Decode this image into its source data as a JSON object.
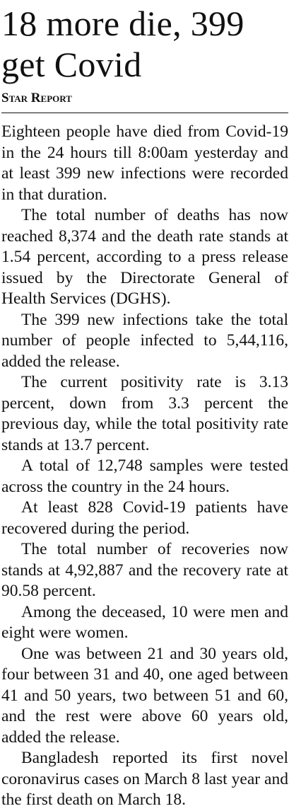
{
  "headline": "18 more die, 399 get Covid",
  "byline": "Star Report",
  "paragraphs": [
    "Eighteen people have died from Covid-19 in the 24 hours till 8:00am yesterday and at least 399 new infections were recorded in that duration.",
    "The total number of deaths has now reached 8,374 and the death rate stands at 1.54 percent, according to a press release issued by the Directorate General of Health Services (DGHS).",
    "The 399 new infections take the total number of people infected to 5,44,116, added the release.",
    "The current positivity rate is 3.13 percent, down from 3.3 percent the previous day, while the total positivity rate stands at 13.7 percent.",
    "A total of 12,748 samples were tested across the country in the 24 hours.",
    "At least 828 Covid-19 patients have recovered during the period.",
    "The total number of recoveries now stands at 4,92,887 and the recovery rate at 90.58 percent.",
    "Among the deceased, 10 were men and eight were women.",
    "One was between 21 and 30 years old, four between 31 and 40, one aged between 41 and 50 years, two between 51 and 60, and the rest were above 60 years old, added the release.",
    "Bangladesh reported its first novel coronavirus cases on March 8 last year and the first death on March 18."
  ]
}
